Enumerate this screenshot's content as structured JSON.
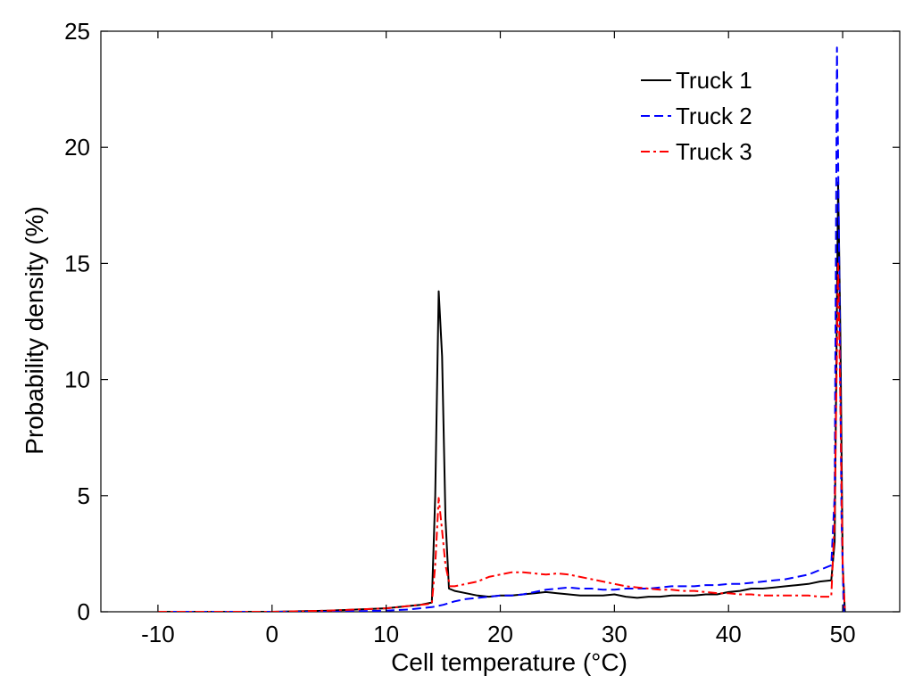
{
  "chart_data": {
    "type": "line",
    "title": "",
    "xlabel": "Cell temperature (°C)",
    "ylabel": "Probability density (%)",
    "xlim": [
      -15,
      55
    ],
    "ylim": [
      0,
      25
    ],
    "xticks": [
      -10,
      0,
      10,
      20,
      30,
      40,
      50
    ],
    "yticks": [
      0,
      5,
      10,
      15,
      20,
      25
    ],
    "grid": false,
    "legend": "top-right",
    "series": [
      {
        "name": "Truck 1",
        "color": "#000000",
        "dash": "solid",
        "x": [
          -10,
          -5,
          0,
          5,
          10,
          12,
          13,
          14,
          14.3,
          14.6,
          14.9,
          15.2,
          15.5,
          16,
          17,
          18,
          19,
          20,
          21,
          22,
          23,
          24,
          25,
          26,
          27,
          28,
          29,
          30,
          31,
          32,
          33,
          34,
          35,
          36,
          37,
          38,
          39,
          40,
          41,
          42,
          43,
          44,
          45,
          46,
          47,
          48,
          49,
          49.3,
          49.6,
          49.8,
          50,
          50.2
        ],
        "values": [
          0,
          0,
          0,
          0.05,
          0.15,
          0.25,
          0.3,
          0.4,
          5,
          13.8,
          11,
          4,
          1,
          0.9,
          0.8,
          0.7,
          0.65,
          0.7,
          0.7,
          0.75,
          0.8,
          0.85,
          0.8,
          0.75,
          0.7,
          0.7,
          0.7,
          0.75,
          0.65,
          0.6,
          0.65,
          0.65,
          0.7,
          0.7,
          0.7,
          0.75,
          0.75,
          0.85,
          0.9,
          1.0,
          1.0,
          1.05,
          1.1,
          1.15,
          1.2,
          1.3,
          1.35,
          3,
          18.5,
          12,
          2,
          0
        ]
      },
      {
        "name": "Truck 2",
        "color": "#0000ff",
        "dash": "dashed",
        "x": [
          -10,
          -5,
          0,
          5,
          10,
          12,
          14,
          15,
          16,
          17,
          18,
          19,
          20,
          21,
          22,
          23,
          24,
          25,
          26,
          27,
          28,
          29,
          30,
          31,
          32,
          33,
          34,
          35,
          36,
          37,
          38,
          39,
          40,
          41,
          42,
          43,
          44,
          45,
          46,
          47,
          48,
          49,
          49.3,
          49.5,
          49.7,
          49.9,
          50.1
        ],
        "values": [
          0,
          0,
          0,
          0,
          0.05,
          0.1,
          0.2,
          0.3,
          0.45,
          0.55,
          0.6,
          0.65,
          0.7,
          0.7,
          0.75,
          0.85,
          0.95,
          1.0,
          1.05,
          1.0,
          1.0,
          0.95,
          0.95,
          1.0,
          1.0,
          1.0,
          1.05,
          1.1,
          1.1,
          1.1,
          1.15,
          1.15,
          1.2,
          1.2,
          1.25,
          1.3,
          1.35,
          1.4,
          1.5,
          1.6,
          1.8,
          2.0,
          5,
          24.3,
          15,
          4,
          0
        ]
      },
      {
        "name": "Truck 3",
        "color": "#ff0000",
        "dash": "dashdot",
        "x": [
          -10,
          -5,
          0,
          5,
          10,
          12,
          13,
          14,
          14.3,
          14.6,
          14.9,
          15.2,
          15.6,
          16,
          17,
          18,
          19,
          20,
          21,
          22,
          23,
          24,
          25,
          26,
          27,
          28,
          29,
          30,
          31,
          32,
          33,
          34,
          35,
          36,
          37,
          38,
          39,
          40,
          41,
          42,
          43,
          44,
          45,
          46,
          47,
          48,
          49,
          49.3,
          49.6,
          49.8,
          50,
          50.2
        ],
        "values": [
          0,
          0,
          0,
          0.05,
          0.15,
          0.25,
          0.3,
          0.35,
          2,
          4.9,
          3.5,
          2,
          1.1,
          1.1,
          1.2,
          1.3,
          1.5,
          1.6,
          1.7,
          1.7,
          1.65,
          1.6,
          1.65,
          1.6,
          1.5,
          1.4,
          1.3,
          1.2,
          1.1,
          1.05,
          1.0,
          0.95,
          0.95,
          0.9,
          0.9,
          0.85,
          0.8,
          0.8,
          0.75,
          0.75,
          0.7,
          0.7,
          0.7,
          0.7,
          0.7,
          0.65,
          0.65,
          4,
          15,
          9,
          2,
          0
        ]
      }
    ]
  }
}
